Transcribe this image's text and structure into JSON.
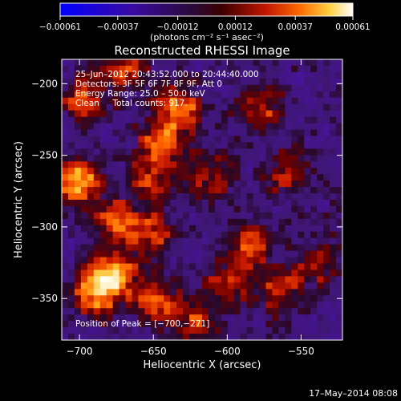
{
  "chart_data": {
    "type": "heatmap",
    "title": "Reconstructed RHESSI Image",
    "xlabel": "Heliocentric X (arcsec)",
    "ylabel": "Heliocentric Y (arcsec)",
    "xlim": [
      -712,
      -522
    ],
    "ylim": [
      -379,
      -183
    ],
    "x_ticks": [
      -700,
      -650,
      -600,
      -550
    ],
    "y_ticks": [
      -350,
      -300,
      -250,
      -200
    ],
    "x_tick_labels": [
      "−700",
      "−650",
      "−600",
      "−550"
    ],
    "y_tick_labels": [
      "−350",
      "−300",
      "−250",
      "−200"
    ],
    "colorbar": {
      "range": [
        -0.00061,
        0.00061
      ],
      "ticks": [
        -0.00061,
        -0.00037,
        -0.00012,
        0.00012,
        0.00037,
        0.00061
      ],
      "tick_labels": [
        "−0.00061",
        "−0.00037",
        "−0.00012",
        "0.00012",
        "0.00037",
        "0.00061"
      ],
      "units_label": "(photons cm⁻² s⁻¹ asec⁻²)"
    },
    "annotations": {
      "time_range": "25–Jun–2012 20:43:52.000 to 20:44:40.000",
      "detectors": "Detectors: 3F 5F 6F 7F 8F 9F, Att 0",
      "energy": "Energy Range: 25.0 – 50.0 keV",
      "method": "Clean     Total counts: 917.",
      "peak": "Position of Peak = [−700,−271]"
    },
    "peak_position": [
      -700,
      -271
    ],
    "bright_sources": [
      {
        "x": -701,
        "y": -268,
        "value": 0.00061
      },
      {
        "x": -678,
        "y": -332,
        "value": 0.00055
      },
      {
        "x": -688,
        "y": -345,
        "value": 0.00052
      },
      {
        "x": -645,
        "y": -242,
        "value": 0.00046
      },
      {
        "x": -632,
        "y": -218,
        "value": 0.00048
      },
      {
        "x": -676,
        "y": -296,
        "value": 0.0004
      },
      {
        "x": -650,
        "y": -305,
        "value": 0.00038
      },
      {
        "x": -585,
        "y": -312,
        "value": 0.00038
      },
      {
        "x": -648,
        "y": -352,
        "value": 0.00042
      },
      {
        "x": -620,
        "y": -368,
        "value": 0.00036
      },
      {
        "x": -697,
        "y": -210,
        "value": 0.00038
      },
      {
        "x": -670,
        "y": -190,
        "value": 0.00034
      },
      {
        "x": -578,
        "y": -216,
        "value": 0.00036
      },
      {
        "x": -559,
        "y": -263,
        "value": 0.00032
      },
      {
        "x": -566,
        "y": -345,
        "value": 0.00033
      },
      {
        "x": -539,
        "y": -326,
        "value": 0.0003
      },
      {
        "x": -612,
        "y": -265,
        "value": 0.0003
      },
      {
        "x": -652,
        "y": -268,
        "value": 0.00034
      },
      {
        "x": -600,
        "y": -340,
        "value": 0.0003
      }
    ]
  },
  "footer": {
    "timestamp": "17–May–2014 08:08"
  }
}
